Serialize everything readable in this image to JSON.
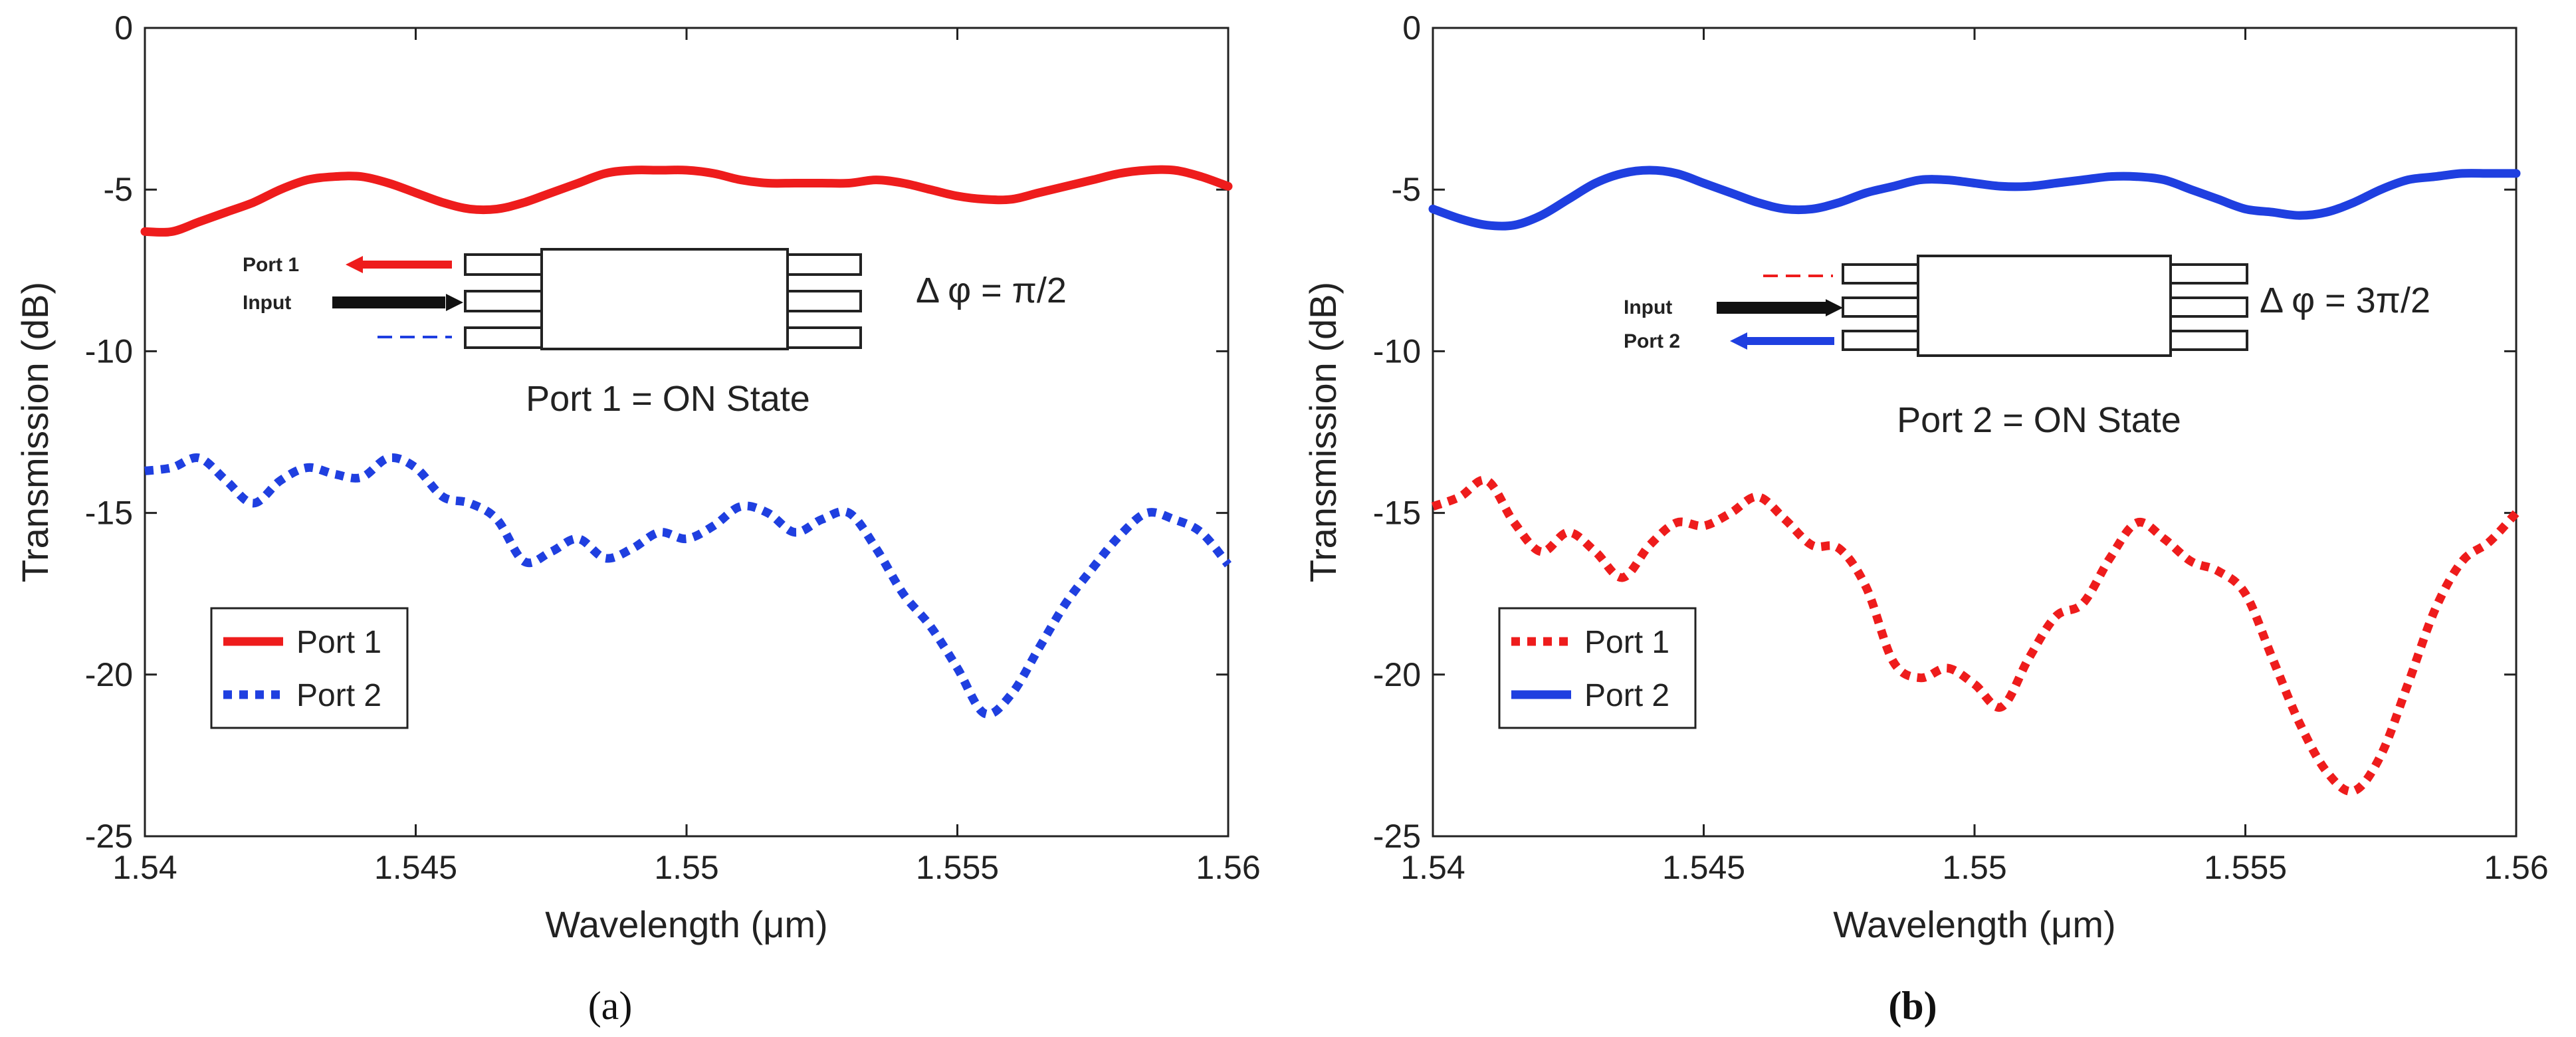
{
  "chart_data": [
    {
      "panel_label": "(a)",
      "type": "line",
      "xlabel": "Wavelength (μm)",
      "ylabel": "Transmission (dB)",
      "xlim": [
        1.54,
        1.56
      ],
      "ylim": [
        -25,
        0
      ],
      "xticks": [
        "1.54",
        "1.545",
        "1.55",
        "1.555",
        "1.56"
      ],
      "yticks": [
        "0",
        "-5",
        "-10",
        "-15",
        "-20",
        "-25"
      ],
      "legend": {
        "placement": "bottom-left",
        "entries": [
          "Port 1",
          "Port 2"
        ]
      },
      "annotations": {
        "phase": "Δ φ = π/2",
        "state": "Port 1 = ON State",
        "inset_top_label": "Port 1",
        "inset_mid_label": "Input"
      },
      "series": [
        {
          "name": "Port 1",
          "color": "#ee1c1c",
          "style": "solid",
          "x": [
            1.54,
            1.5405,
            1.541,
            1.5415,
            1.542,
            1.5425,
            1.543,
            1.5435,
            1.544,
            1.5445,
            1.545,
            1.5455,
            1.546,
            1.5465,
            1.547,
            1.5475,
            1.548,
            1.5485,
            1.549,
            1.5495,
            1.55,
            1.5505,
            1.551,
            1.5515,
            1.552,
            1.5525,
            1.553,
            1.5535,
            1.554,
            1.5545,
            1.555,
            1.5555,
            1.556,
            1.5565,
            1.557,
            1.5575,
            1.558,
            1.5585,
            1.559,
            1.5595,
            1.56
          ],
          "y": [
            -6.3,
            -6.3,
            -6.0,
            -5.7,
            -5.4,
            -5.0,
            -4.7,
            -4.6,
            -4.6,
            -4.8,
            -5.1,
            -5.4,
            -5.6,
            -5.6,
            -5.4,
            -5.1,
            -4.8,
            -4.5,
            -4.4,
            -4.4,
            -4.4,
            -4.5,
            -4.7,
            -4.8,
            -4.8,
            -4.8,
            -4.8,
            -4.7,
            -4.8,
            -5.0,
            -5.2,
            -5.3,
            -5.3,
            -5.1,
            -4.9,
            -4.7,
            -4.5,
            -4.4,
            -4.4,
            -4.6,
            -4.9
          ]
        },
        {
          "name": "Port 2",
          "color": "#1f3fe0",
          "style": "dotted",
          "x": [
            1.54,
            1.5405,
            1.541,
            1.5415,
            1.542,
            1.5425,
            1.543,
            1.5435,
            1.544,
            1.5445,
            1.545,
            1.5455,
            1.546,
            1.5465,
            1.547,
            1.5475,
            1.548,
            1.5485,
            1.549,
            1.5495,
            1.55,
            1.5505,
            1.551,
            1.5515,
            1.552,
            1.5525,
            1.553,
            1.5535,
            1.554,
            1.5545,
            1.555,
            1.5555,
            1.556,
            1.5565,
            1.557,
            1.5575,
            1.558,
            1.5585,
            1.559,
            1.5595,
            1.56
          ],
          "y": [
            -13.7,
            -13.6,
            -13.3,
            -14.0,
            -14.7,
            -14.0,
            -13.6,
            -13.8,
            -13.9,
            -13.3,
            -13.6,
            -14.5,
            -14.7,
            -15.2,
            -16.5,
            -16.2,
            -15.8,
            -16.4,
            -16.1,
            -15.6,
            -15.8,
            -15.4,
            -14.8,
            -15.0,
            -15.6,
            -15.2,
            -15.0,
            -16.1,
            -17.5,
            -18.5,
            -19.8,
            -21.2,
            -20.6,
            -19.2,
            -17.8,
            -16.7,
            -15.7,
            -15.0,
            -15.2,
            -15.6,
            -16.6
          ]
        }
      ]
    },
    {
      "panel_label": "(b)",
      "type": "line",
      "xlabel": "Wavelength (μm)",
      "ylabel": "Transmission (dB)",
      "xlim": [
        1.54,
        1.56
      ],
      "ylim": [
        -25,
        0
      ],
      "xticks": [
        "1.54",
        "1.545",
        "1.55",
        "1.555",
        "1.56"
      ],
      "yticks": [
        "0",
        "-5",
        "-10",
        "-15",
        "-20",
        "-25"
      ],
      "legend": {
        "placement": "bottom-left",
        "entries": [
          "Port 1",
          "Port 2"
        ]
      },
      "annotations": {
        "phase": "Δ φ = 3π/2",
        "state": "Port 2 = ON State",
        "inset_mid_label": "Input",
        "inset_bottom_label": "Port 2"
      },
      "series": [
        {
          "name": "Port 1",
          "color": "#ee1c1c",
          "style": "dotted",
          "x": [
            1.54,
            1.5405,
            1.541,
            1.5415,
            1.542,
            1.5425,
            1.543,
            1.5435,
            1.544,
            1.5445,
            1.545,
            1.5455,
            1.546,
            1.5465,
            1.547,
            1.5475,
            1.548,
            1.5485,
            1.549,
            1.5495,
            1.55,
            1.5505,
            1.551,
            1.5515,
            1.552,
            1.5525,
            1.553,
            1.5535,
            1.554,
            1.5545,
            1.555,
            1.5555,
            1.556,
            1.5565,
            1.557,
            1.5575,
            1.558,
            1.5585,
            1.559,
            1.5595,
            1.56
          ],
          "y": [
            -14.8,
            -14.5,
            -14.0,
            -15.3,
            -16.2,
            -15.6,
            -16.2,
            -17.0,
            -16.0,
            -15.3,
            -15.4,
            -15.0,
            -14.5,
            -15.2,
            -16.0,
            -16.1,
            -17.3,
            -19.6,
            -20.1,
            -19.8,
            -20.3,
            -21.0,
            -19.5,
            -18.2,
            -17.8,
            -16.4,
            -15.3,
            -15.8,
            -16.5,
            -16.8,
            -17.5,
            -19.5,
            -21.5,
            -23.0,
            -23.6,
            -22.5,
            -20.3,
            -18.0,
            -16.5,
            -15.9,
            -15.0
          ]
        },
        {
          "name": "Port 2",
          "color": "#1f3fe0",
          "style": "solid",
          "x": [
            1.54,
            1.5405,
            1.541,
            1.5415,
            1.542,
            1.5425,
            1.543,
            1.5435,
            1.544,
            1.5445,
            1.545,
            1.5455,
            1.546,
            1.5465,
            1.547,
            1.5475,
            1.548,
            1.5485,
            1.549,
            1.5495,
            1.55,
            1.5505,
            1.551,
            1.5515,
            1.552,
            1.5525,
            1.553,
            1.5535,
            1.554,
            1.5545,
            1.555,
            1.5555,
            1.556,
            1.5565,
            1.557,
            1.5575,
            1.558,
            1.5585,
            1.559,
            1.5595,
            1.56
          ],
          "y": [
            -5.6,
            -5.9,
            -6.1,
            -6.1,
            -5.8,
            -5.3,
            -4.8,
            -4.5,
            -4.4,
            -4.5,
            -4.8,
            -5.1,
            -5.4,
            -5.6,
            -5.6,
            -5.4,
            -5.1,
            -4.9,
            -4.7,
            -4.7,
            -4.8,
            -4.9,
            -4.9,
            -4.8,
            -4.7,
            -4.6,
            -4.6,
            -4.7,
            -5.0,
            -5.3,
            -5.6,
            -5.7,
            -5.8,
            -5.7,
            -5.4,
            -5.0,
            -4.7,
            -4.6,
            -4.5,
            -4.5,
            -4.5
          ]
        }
      ]
    }
  ]
}
